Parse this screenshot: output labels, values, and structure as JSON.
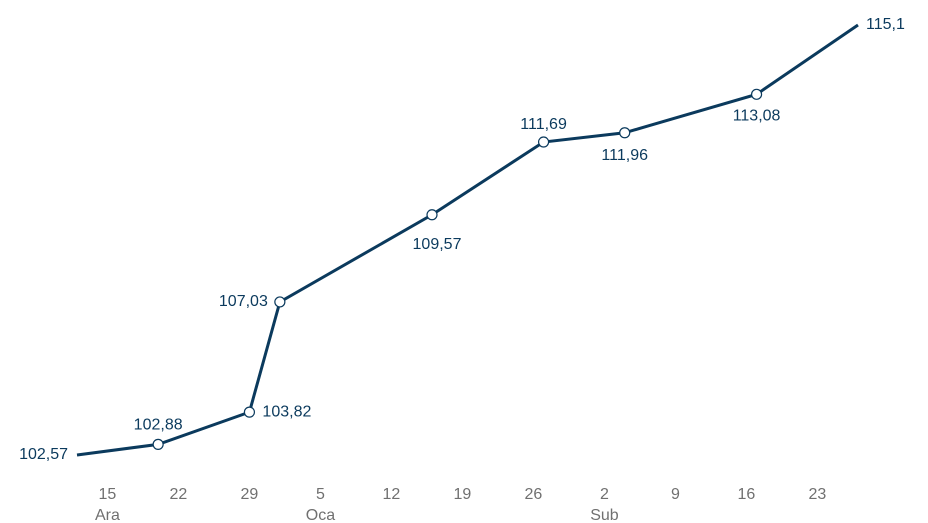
{
  "chart_data": {
    "type": "line",
    "x": [
      "12-12",
      "12-20",
      "12-29",
      "01-01",
      "01-16",
      "01-27",
      "02-04",
      "02-17",
      "02-27"
    ],
    "series": [
      {
        "color": "#0b3a5d",
        "values": [
          102.57,
          102.88,
          103.82,
          107.03,
          109.57,
          111.69,
          111.96,
          113.08,
          115.1
        ],
        "value_labels": [
          "102,57",
          "102,88",
          "103,82",
          "107,03",
          "109,57",
          "111,69",
          "111,96",
          "113,08",
          "115,1"
        ]
      }
    ],
    "xlim": [
      "12-12",
      "02-27"
    ],
    "xticks": [
      {
        "value": "12-15",
        "label": "15"
      },
      {
        "value": "12-22",
        "label": "22"
      },
      {
        "value": "12-29",
        "label": "29"
      },
      {
        "value": "01-05",
        "label": "5"
      },
      {
        "value": "01-12",
        "label": "12"
      },
      {
        "value": "01-19",
        "label": "19"
      },
      {
        "value": "01-26",
        "label": "26"
      },
      {
        "value": "02-02",
        "label": "2"
      },
      {
        "value": "02-09",
        "label": "9"
      },
      {
        "value": "02-16",
        "label": "16"
      },
      {
        "value": "02-23",
        "label": "23"
      }
    ],
    "xgroups": [
      {
        "value": "12-15",
        "label": "Ara"
      },
      {
        "value": "01-05",
        "label": "Oca"
      },
      {
        "value": "02-02",
        "label": "Sub"
      }
    ]
  }
}
